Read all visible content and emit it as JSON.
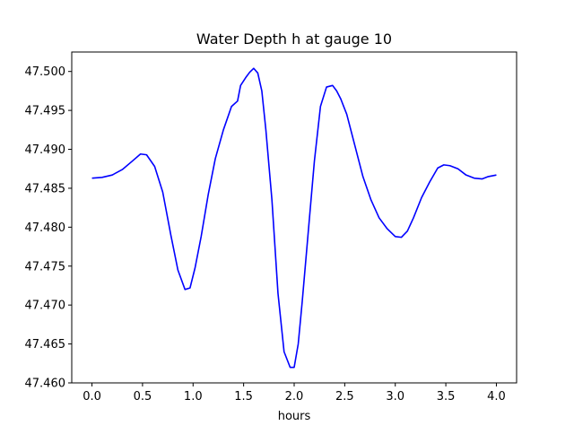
{
  "chart_data": {
    "type": "line",
    "title": "Water Depth h at gauge 10",
    "xlabel": "hours",
    "ylabel": "",
    "xlim": [
      -0.2,
      4.2
    ],
    "ylim": [
      47.46,
      47.5025
    ],
    "xticks": [
      0.0,
      0.5,
      1.0,
      1.5,
      2.0,
      2.5,
      3.0,
      3.5,
      4.0
    ],
    "xtick_labels": [
      "0.0",
      "0.5",
      "1.0",
      "1.5",
      "2.0",
      "2.5",
      "3.0",
      "3.5",
      "4.0"
    ],
    "yticks": [
      47.46,
      47.465,
      47.47,
      47.475,
      47.48,
      47.485,
      47.49,
      47.495,
      47.5
    ],
    "ytick_labels": [
      "47.460",
      "47.465",
      "47.470",
      "47.475",
      "47.480",
      "47.485",
      "47.490",
      "47.495",
      "47.500"
    ],
    "grid": false,
    "series": [
      {
        "color": "#0000ff",
        "x": [
          0.0,
          0.1,
          0.2,
          0.3,
          0.4,
          0.48,
          0.54,
          0.62,
          0.7,
          0.78,
          0.85,
          0.92,
          0.97,
          1.02,
          1.08,
          1.15,
          1.22,
          1.3,
          1.38,
          1.44,
          1.47,
          1.52,
          1.56,
          1.6,
          1.64,
          1.68,
          1.72,
          1.78,
          1.84,
          1.9,
          1.96,
          2.0,
          2.04,
          2.08,
          2.14,
          2.2,
          2.26,
          2.32,
          2.38,
          2.42,
          2.46,
          2.52,
          2.6,
          2.68,
          2.76,
          2.84,
          2.92,
          3.0,
          3.06,
          3.12,
          3.18,
          3.26,
          3.34,
          3.42,
          3.48,
          3.54,
          3.62,
          3.7,
          3.78,
          3.86,
          3.92,
          4.0
        ],
        "y": [
          47.4863,
          47.4864,
          47.4867,
          47.4874,
          47.4885,
          47.4894,
          47.4893,
          47.4878,
          47.4845,
          47.479,
          47.4745,
          47.472,
          47.4722,
          47.4748,
          47.4788,
          47.4842,
          47.4888,
          47.4925,
          47.4955,
          47.4962,
          47.4982,
          47.4992,
          47.4999,
          47.5004,
          47.4998,
          47.4975,
          47.4925,
          47.4835,
          47.4715,
          47.464,
          47.462,
          47.462,
          47.465,
          47.4705,
          47.4795,
          47.4885,
          47.4955,
          47.498,
          47.4982,
          47.4975,
          47.4965,
          47.4945,
          47.4905,
          47.4865,
          47.4835,
          47.4812,
          47.4798,
          47.4788,
          47.4787,
          47.4795,
          47.4812,
          47.4838,
          47.4858,
          47.4876,
          47.488,
          47.4879,
          47.4875,
          47.4867,
          47.4863,
          47.4862,
          47.4865,
          47.4867
        ]
      }
    ]
  }
}
